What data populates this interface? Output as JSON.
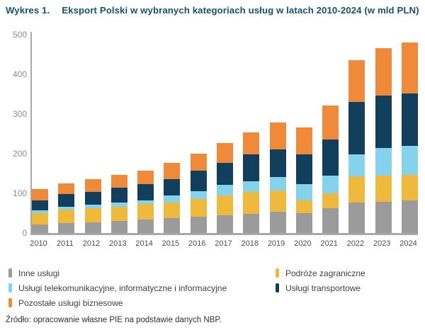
{
  "title": {
    "label": "Wykres 1.",
    "text": "Eksport Polski w wybranych kategoriach usług w latach 2010-2024 (w mld PLN)"
  },
  "source": "Źródło: opracowanie własne PIE na podstawie danych NBP.",
  "colors": {
    "title": "#15536E",
    "axis": "#a8a8a8",
    "gray": "#9B9B9B",
    "yellow": "#EEB93C",
    "lightblue": "#85D2EC",
    "navy": "#123F5C",
    "orange": "#F08A3B"
  },
  "chart_data": {
    "type": "bar",
    "stacked": true,
    "title": "Eksport Polski w wybranych kategoriach usług w latach 2010-2024 (w mld PLN)",
    "xlabel": "",
    "ylabel": "mld PLN",
    "ylim": [
      0,
      500
    ],
    "yticks": [
      0,
      100,
      200,
      300,
      400,
      500
    ],
    "grid": false,
    "legend_position": "bottom",
    "categories": [
      "2010",
      "2011",
      "2012",
      "2013",
      "2014",
      "2015",
      "2016",
      "2017",
      "2018",
      "2019",
      "2020",
      "2021",
      "2022",
      "2023",
      "2024"
    ],
    "series": [
      {
        "name": "Inne usługi",
        "color": "#9B9B9B",
        "values": [
          22,
          25,
          26,
          31,
          34,
          37,
          41,
          44,
          49,
          53,
          50,
          62,
          76,
          79,
          83
        ]
      },
      {
        "name": "Podróże zagraniczne",
        "color": "#EEB93C",
        "values": [
          28,
          34,
          37,
          35,
          39,
          39,
          45,
          50,
          55,
          55,
          32,
          38,
          67,
          66,
          63
        ]
      },
      {
        "name": "Usługi telekomunikacyjne, informatyczne i informacyjne",
        "color": "#85D2EC",
        "values": [
          8,
          8,
          9,
          11,
          10,
          19,
          20,
          27,
          26,
          33,
          42,
          45,
          56,
          69,
          74
        ]
      },
      {
        "name": "Usługi transportowe",
        "color": "#123F5C",
        "values": [
          25,
          32,
          31,
          37,
          41,
          41,
          52,
          55,
          68,
          70,
          75,
          90,
          132,
          132,
          131
        ]
      },
      {
        "name": "Pozostałe usługi biznesowe",
        "color": "#F08A3B",
        "values": [
          27,
          26,
          33,
          33,
          33,
          40,
          42,
          50,
          56,
          67,
          67,
          86,
          104,
          120,
          129
        ]
      }
    ],
    "totals": [
      110,
      125,
      136,
      147,
      157,
      176,
      200,
      226,
      254,
      278,
      266,
      321,
      435,
      466,
      480
    ],
    "legend_columns": [
      [
        0,
        2,
        4
      ],
      [
        1,
        3
      ]
    ]
  }
}
